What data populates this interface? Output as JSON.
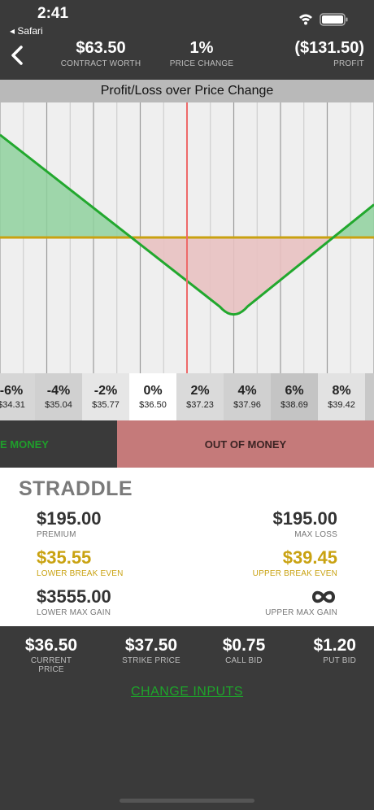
{
  "status_bar": {
    "time": "2:41",
    "back_app": "◂ Safari"
  },
  "header": {
    "contract_worth": {
      "value": "$63.50",
      "label": "CONTRACT WORTH"
    },
    "price_change": {
      "value": "1%",
      "label": "PRICE CHANGE"
    },
    "profit": {
      "value": "($131.50)",
      "label": "PROFIT"
    }
  },
  "chart_data": {
    "type": "area",
    "title": "Profit/Loss over Price Change",
    "xlabel": "",
    "ylabel": "",
    "x_range_pct": [
      -8,
      8
    ],
    "current_price_change_pct": 0,
    "strike_price": 37.5,
    "lower_break_even": 35.55,
    "upper_break_even": 39.45,
    "series": [
      {
        "values_pct": [
          -8,
          2,
          8
        ],
        "profit": [
          250,
          -195,
          80
        ]
      }
    ],
    "grid": true,
    "colors": {
      "profit_fill": "#8fd19e",
      "loss_fill": "#e8c1c1",
      "line": "#22a82e",
      "zero_line": "#c9a211",
      "current_line": "#ee6a6a"
    }
  },
  "price_strip": [
    {
      "pct": "-6%",
      "price": "$34.31"
    },
    {
      "pct": "-4%",
      "price": "$35.04"
    },
    {
      "pct": "-2%",
      "price": "$35.77"
    },
    {
      "pct": "0%",
      "price": "$36.50"
    },
    {
      "pct": "2%",
      "price": "$37.23"
    },
    {
      "pct": "4%",
      "price": "$37.96"
    },
    {
      "pct": "6%",
      "price": "$38.69"
    },
    {
      "pct": "8%",
      "price": "$39.42"
    }
  ],
  "band": {
    "in_money": "E MONEY",
    "out_money": "OUT OF MONEY"
  },
  "strategy": {
    "title": "STRADDLE",
    "premium": {
      "value": "$195.00",
      "label": "PREMIUM"
    },
    "max_loss": {
      "value": "$195.00",
      "label": "MAX LOSS"
    },
    "lower_break_even": {
      "value": "$35.55",
      "label": "LOWER BREAK EVEN"
    },
    "upper_break_even": {
      "value": "$39.45",
      "label": "UPPER BREAK EVEN"
    },
    "lower_max_gain": {
      "value": "$3555.00",
      "label": "LOWER MAX GAIN"
    },
    "upper_max_gain": {
      "icon": "infinity-icon",
      "label": "UPPER MAX GAIN"
    }
  },
  "inputs": {
    "current_price": {
      "value": "$36.50",
      "label": "CURRENT PRICE"
    },
    "strike_price": {
      "value": "$37.50",
      "label": "STRIKE PRICE"
    },
    "call_bid": {
      "value": "$0.75",
      "label": "CALL BID"
    },
    "put_bid": {
      "value": "$1.20",
      "label": "PUT BID"
    }
  },
  "change_inputs_label": "CHANGE INPUTS"
}
